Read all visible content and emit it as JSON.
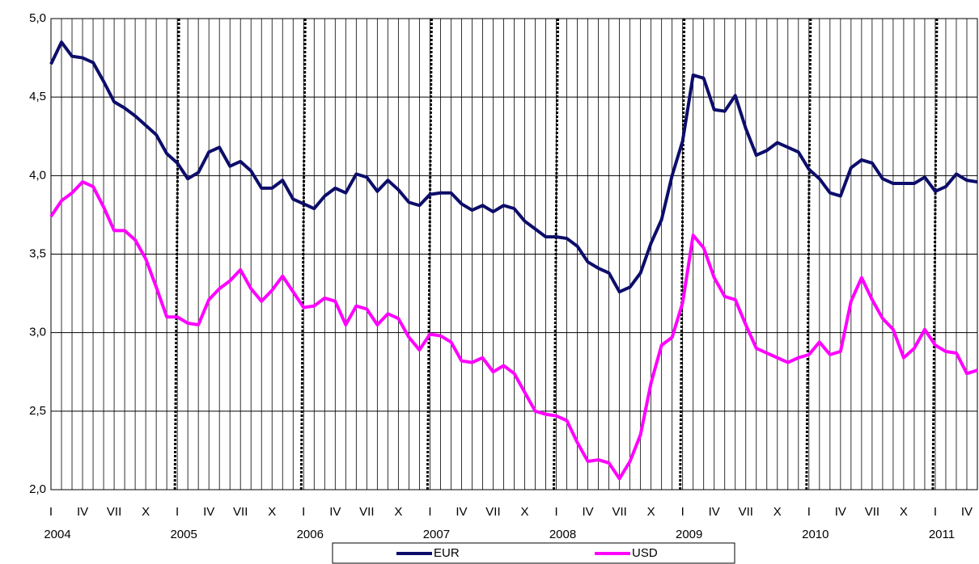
{
  "chart_data": {
    "type": "line",
    "categories": [
      "I",
      null,
      null,
      "IV",
      null,
      null,
      "VII",
      null,
      null,
      "X",
      null,
      null,
      "I",
      null,
      null,
      "IV",
      null,
      null,
      "VII",
      null,
      null,
      "X",
      null,
      null,
      "I",
      null,
      null,
      "IV",
      null,
      null,
      "VII",
      null,
      null,
      "X",
      null,
      null,
      "I",
      null,
      null,
      "IV",
      null,
      null,
      "VII",
      null,
      null,
      "X",
      null,
      null,
      "I",
      null,
      null,
      "IV",
      null,
      null,
      "VII",
      null,
      null,
      "X",
      null,
      null,
      "I",
      null,
      null,
      "IV",
      null,
      null,
      "VII",
      null,
      null,
      "X",
      null,
      null,
      "I",
      null,
      null,
      "IV",
      null,
      null,
      "VII",
      null,
      null,
      "X",
      null,
      null,
      "I",
      null,
      null,
      "IV",
      null
    ],
    "years": [
      "2004",
      "2005",
      "2006",
      "2007",
      "2008",
      "2009",
      "2010",
      "2011"
    ],
    "series": [
      {
        "name": "EUR",
        "color": "#0d0d6b",
        "values": [
          4.71,
          4.85,
          4.76,
          4.75,
          4.72,
          4.6,
          4.47,
          4.43,
          4.38,
          4.32,
          4.26,
          4.14,
          4.08,
          3.98,
          4.02,
          4.15,
          4.18,
          4.06,
          4.09,
          4.03,
          3.92,
          3.92,
          3.97,
          3.85,
          3.82,
          3.79,
          3.87,
          3.92,
          3.89,
          4.01,
          3.99,
          3.9,
          3.97,
          3.91,
          3.83,
          3.81,
          3.88,
          3.89,
          3.89,
          3.82,
          3.78,
          3.81,
          3.77,
          3.81,
          3.79,
          3.71,
          3.66,
          3.61,
          3.61,
          3.6,
          3.55,
          3.45,
          3.41,
          3.38,
          3.26,
          3.29,
          3.38,
          3.57,
          3.72,
          4.0,
          4.22,
          4.64,
          4.62,
          4.42,
          4.41,
          4.51,
          4.3,
          4.13,
          4.16,
          4.21,
          4.18,
          4.15,
          4.04,
          3.98,
          3.89,
          3.87,
          4.05,
          4.1,
          4.08,
          3.98,
          3.95,
          3.95,
          3.95,
          3.99,
          3.9,
          3.93,
          4.01,
          3.97,
          3.96
        ]
      },
      {
        "name": "USD",
        "color": "#ff00ff",
        "values": [
          3.74,
          3.84,
          3.89,
          3.96,
          3.93,
          3.8,
          3.65,
          3.65,
          3.59,
          3.47,
          3.29,
          3.1,
          3.1,
          3.06,
          3.05,
          3.21,
          3.28,
          3.33,
          3.4,
          3.28,
          3.2,
          3.27,
          3.36,
          3.26,
          3.16,
          3.17,
          3.22,
          3.2,
          3.05,
          3.17,
          3.15,
          3.05,
          3.12,
          3.09,
          2.97,
          2.89,
          2.99,
          2.98,
          2.94,
          2.82,
          2.81,
          2.84,
          2.75,
          2.79,
          2.74,
          2.62,
          2.5,
          2.48,
          2.47,
          2.44,
          2.3,
          2.18,
          2.19,
          2.17,
          2.07,
          2.18,
          2.35,
          2.68,
          2.92,
          2.97,
          3.19,
          3.62,
          3.54,
          3.35,
          3.23,
          3.21,
          3.05,
          2.9,
          2.87,
          2.84,
          2.81,
          2.84,
          2.86,
          2.94,
          2.86,
          2.88,
          3.2,
          3.35,
          3.21,
          3.09,
          3.02,
          2.84,
          2.9,
          3.02,
          2.92,
          2.88,
          2.87,
          2.74,
          2.76
        ]
      }
    ],
    "ylim": [
      2,
      5
    ],
    "yticks": [
      {
        "value": 2,
        "label": "2,0"
      },
      {
        "value": 2.5,
        "label": "2,5"
      },
      {
        "value": 3,
        "label": "3,0"
      },
      {
        "value": 3.5,
        "label": "3,5"
      },
      {
        "value": 4,
        "label": "4,0"
      },
      {
        "value": 4.5,
        "label": "4,5"
      },
      {
        "value": 5,
        "label": "5,0"
      }
    ],
    "grid": true,
    "legend": "bottom"
  }
}
